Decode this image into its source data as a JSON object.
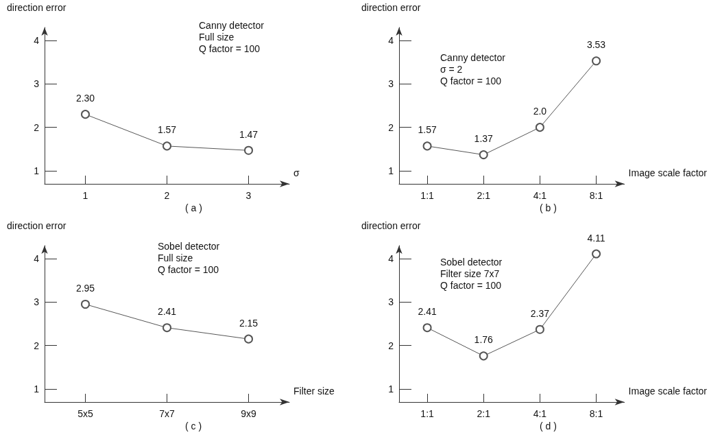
{
  "chart_data": [
    {
      "type": "line",
      "subtitle": "( a )",
      "xlabel": "σ",
      "ylabel": "direction error",
      "annotations": [
        "Canny detector",
        "Full size",
        "Q factor = 100"
      ],
      "categories": [
        "1",
        "2",
        "3"
      ],
      "values": [
        2.3,
        1.57,
        1.47
      ],
      "value_labels": [
        "2.30",
        "1.57",
        "1.47"
      ],
      "color": "#555555",
      "ylim": [
        0.7,
        4.3
      ],
      "yticks": [
        1,
        2,
        3,
        4
      ],
      "grid": false,
      "marker": "circle",
      "line_style": "solid"
    },
    {
      "type": "line",
      "subtitle": "( b )",
      "xlabel": "Image scale factor",
      "ylabel": "direction error",
      "annotations": [
        "Canny detector",
        "σ = 2",
        "Q factor = 100"
      ],
      "categories": [
        "1:1",
        "2:1",
        "4:1",
        "8:1"
      ],
      "values": [
        1.57,
        1.37,
        2.0,
        3.53
      ],
      "value_labels": [
        "1.57",
        "1.37",
        "2.0",
        "3.53"
      ],
      "color": "#555555",
      "ylim": [
        0.7,
        4.3
      ],
      "yticks": [
        1,
        2,
        3,
        4
      ],
      "grid": false,
      "marker": "circle",
      "line_style": "solid"
    },
    {
      "type": "line",
      "subtitle": "( c )",
      "xlabel": "Filter size",
      "ylabel": "direction error",
      "annotations": [
        "Sobel detector",
        "Full size",
        "Q factor = 100"
      ],
      "categories": [
        "5x5",
        "7x7",
        "9x9"
      ],
      "values": [
        2.95,
        2.41,
        2.15
      ],
      "color": "#555555",
      "ylim": [
        0.7,
        4.3
      ],
      "yticks": [
        1,
        2,
        3,
        4
      ],
      "grid": false,
      "marker": "circle",
      "line_style": "solid",
      "data_labels": true
    },
    {
      "type": "line",
      "subtitle": "( d )",
      "xlabel": "Image scale factor",
      "ylabel": "direction error",
      "annotations": [
        "Sobel detector",
        "Filter size 7x7",
        "Q factor = 100"
      ],
      "categories": [
        "1:1",
        "2:1",
        "4:1",
        "8:1"
      ],
      "values": [
        2.41,
        1.76,
        2.37,
        4.11
      ],
      "color": "#555555",
      "ylim": [
        0.7,
        4.3
      ],
      "yticks": [
        1,
        2,
        3,
        4
      ],
      "grid": false,
      "marker": "circle",
      "line_style": "solid",
      "data_labels": true
    }
  ]
}
